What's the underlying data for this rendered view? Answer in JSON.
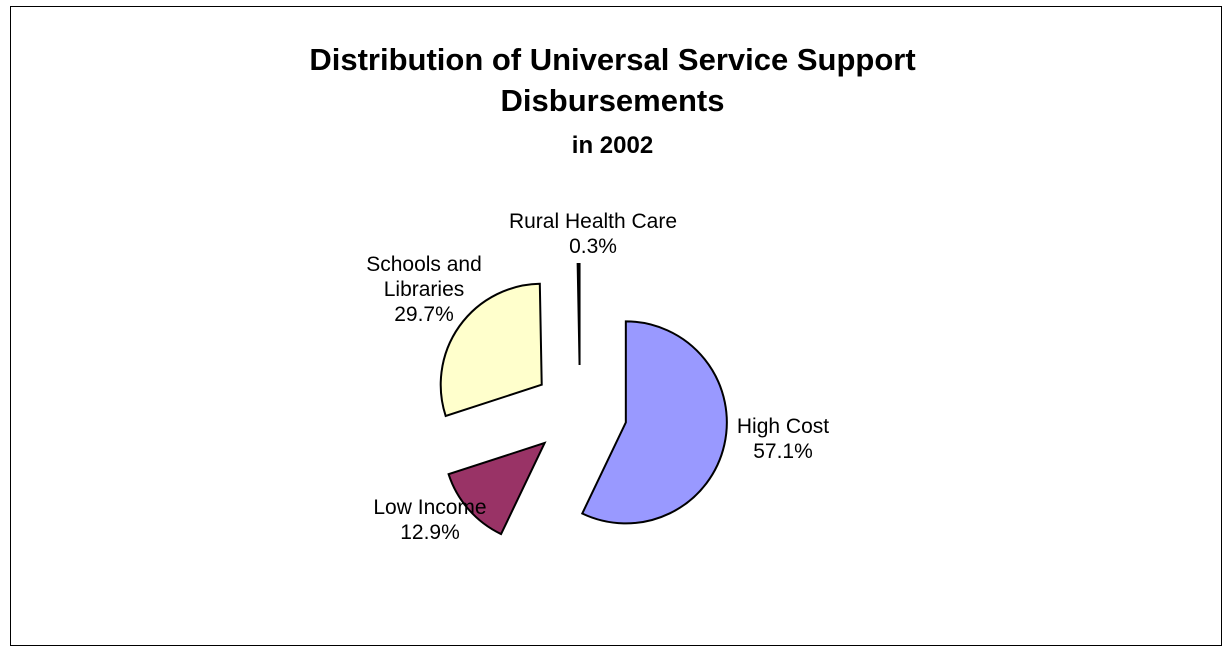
{
  "chart_data": {
    "type": "pie",
    "title": "Distribution of Universal Service Support",
    "title_line2": "Disbursements",
    "subtitle": "in 2002",
    "slices": [
      {
        "name": "High Cost",
        "value": 57.1,
        "label": "57.1%",
        "color": "#9999ff"
      },
      {
        "name": "Low Income",
        "value": 12.9,
        "label": "12.9%",
        "color": "#993366"
      },
      {
        "name": "Schools and Libraries",
        "value": 29.7,
        "label": "29.7%",
        "color": "#ffffcc"
      },
      {
        "name": "Rural Health Care",
        "value": 0.3,
        "label": "0.3%",
        "color": "#ffffff"
      }
    ],
    "exploded": true,
    "legend": "none"
  }
}
